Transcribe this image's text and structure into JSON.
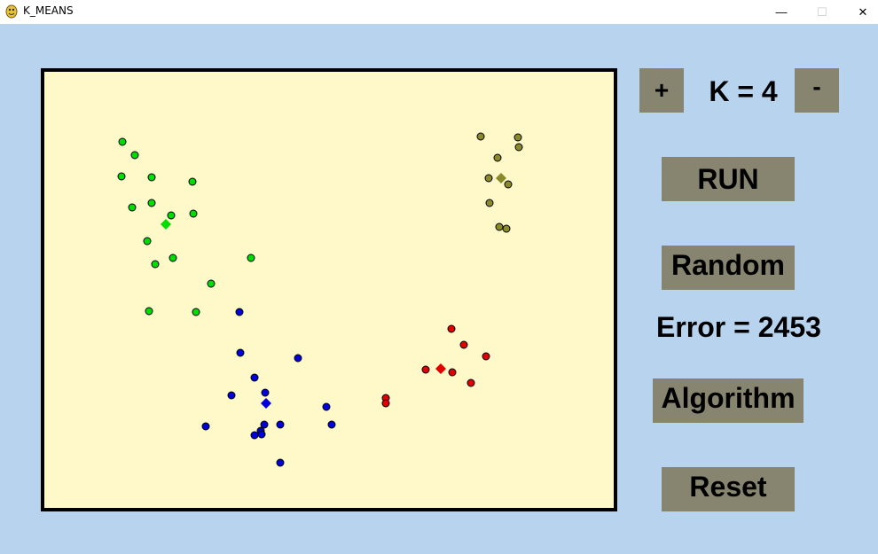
{
  "window": {
    "title": "K_MEANS",
    "minimize_glyph": "—",
    "maximize_glyph": "☐",
    "close_glyph": "✕"
  },
  "controls": {
    "plus_label": "+",
    "minus_label": "-",
    "k_label": "K = 4",
    "run_label": "RUN",
    "random_label": "Random",
    "error_label": "Error = 2453",
    "algorithm_label": "Algorithm",
    "reset_label": "Reset"
  },
  "colors": {
    "background": "#b8d3ee",
    "canvas": "#fff8c8",
    "button": "#878570"
  },
  "chart_data": {
    "type": "scatter",
    "title": "",
    "k": 4,
    "clusters": [
      {
        "color": "#00dd00",
        "centroid": [
          187,
          253
        ],
        "points": [
          [
            138,
            160
          ],
          [
            152,
            175
          ],
          [
            137,
            199
          ],
          [
            171,
            200
          ],
          [
            217,
            205
          ],
          [
            149,
            234
          ],
          [
            171,
            229
          ],
          [
            193,
            243
          ],
          [
            218,
            241
          ],
          [
            166,
            272
          ],
          [
            195,
            291
          ],
          [
            175,
            298
          ],
          [
            283,
            291
          ],
          [
            238,
            320
          ],
          [
            168,
            351
          ],
          [
            221,
            352
          ]
        ]
      },
      {
        "color": "#8a8a2a",
        "centroid": [
          565,
          201
        ],
        "points": [
          [
            542,
            154
          ],
          [
            584,
            155
          ],
          [
            585,
            166
          ],
          [
            561,
            178
          ],
          [
            551,
            201
          ],
          [
            573,
            208
          ],
          [
            552,
            229
          ],
          [
            563,
            256
          ],
          [
            571,
            258
          ]
        ]
      },
      {
        "color": "#e00000",
        "centroid": [
          497,
          416
        ],
        "points": [
          [
            509,
            371
          ],
          [
            523,
            389
          ],
          [
            548,
            402
          ],
          [
            480,
            417
          ],
          [
            510,
            420
          ],
          [
            531,
            432
          ],
          [
            435,
            449
          ],
          [
            435,
            455
          ]
        ]
      },
      {
        "color": "#0000dd",
        "centroid": [
          300,
          455
        ],
        "points": [
          [
            270,
            352
          ],
          [
            271,
            398
          ],
          [
            336,
            404
          ],
          [
            287,
            426
          ],
          [
            299,
            443
          ],
          [
            261,
            446
          ],
          [
            368,
            459
          ],
          [
            232,
            481
          ],
          [
            298,
            479
          ],
          [
            316,
            479
          ],
          [
            374,
            479
          ],
          [
            294,
            486
          ],
          [
            287,
            491
          ],
          [
            295,
            490
          ],
          [
            316,
            522
          ]
        ]
      }
    ]
  }
}
